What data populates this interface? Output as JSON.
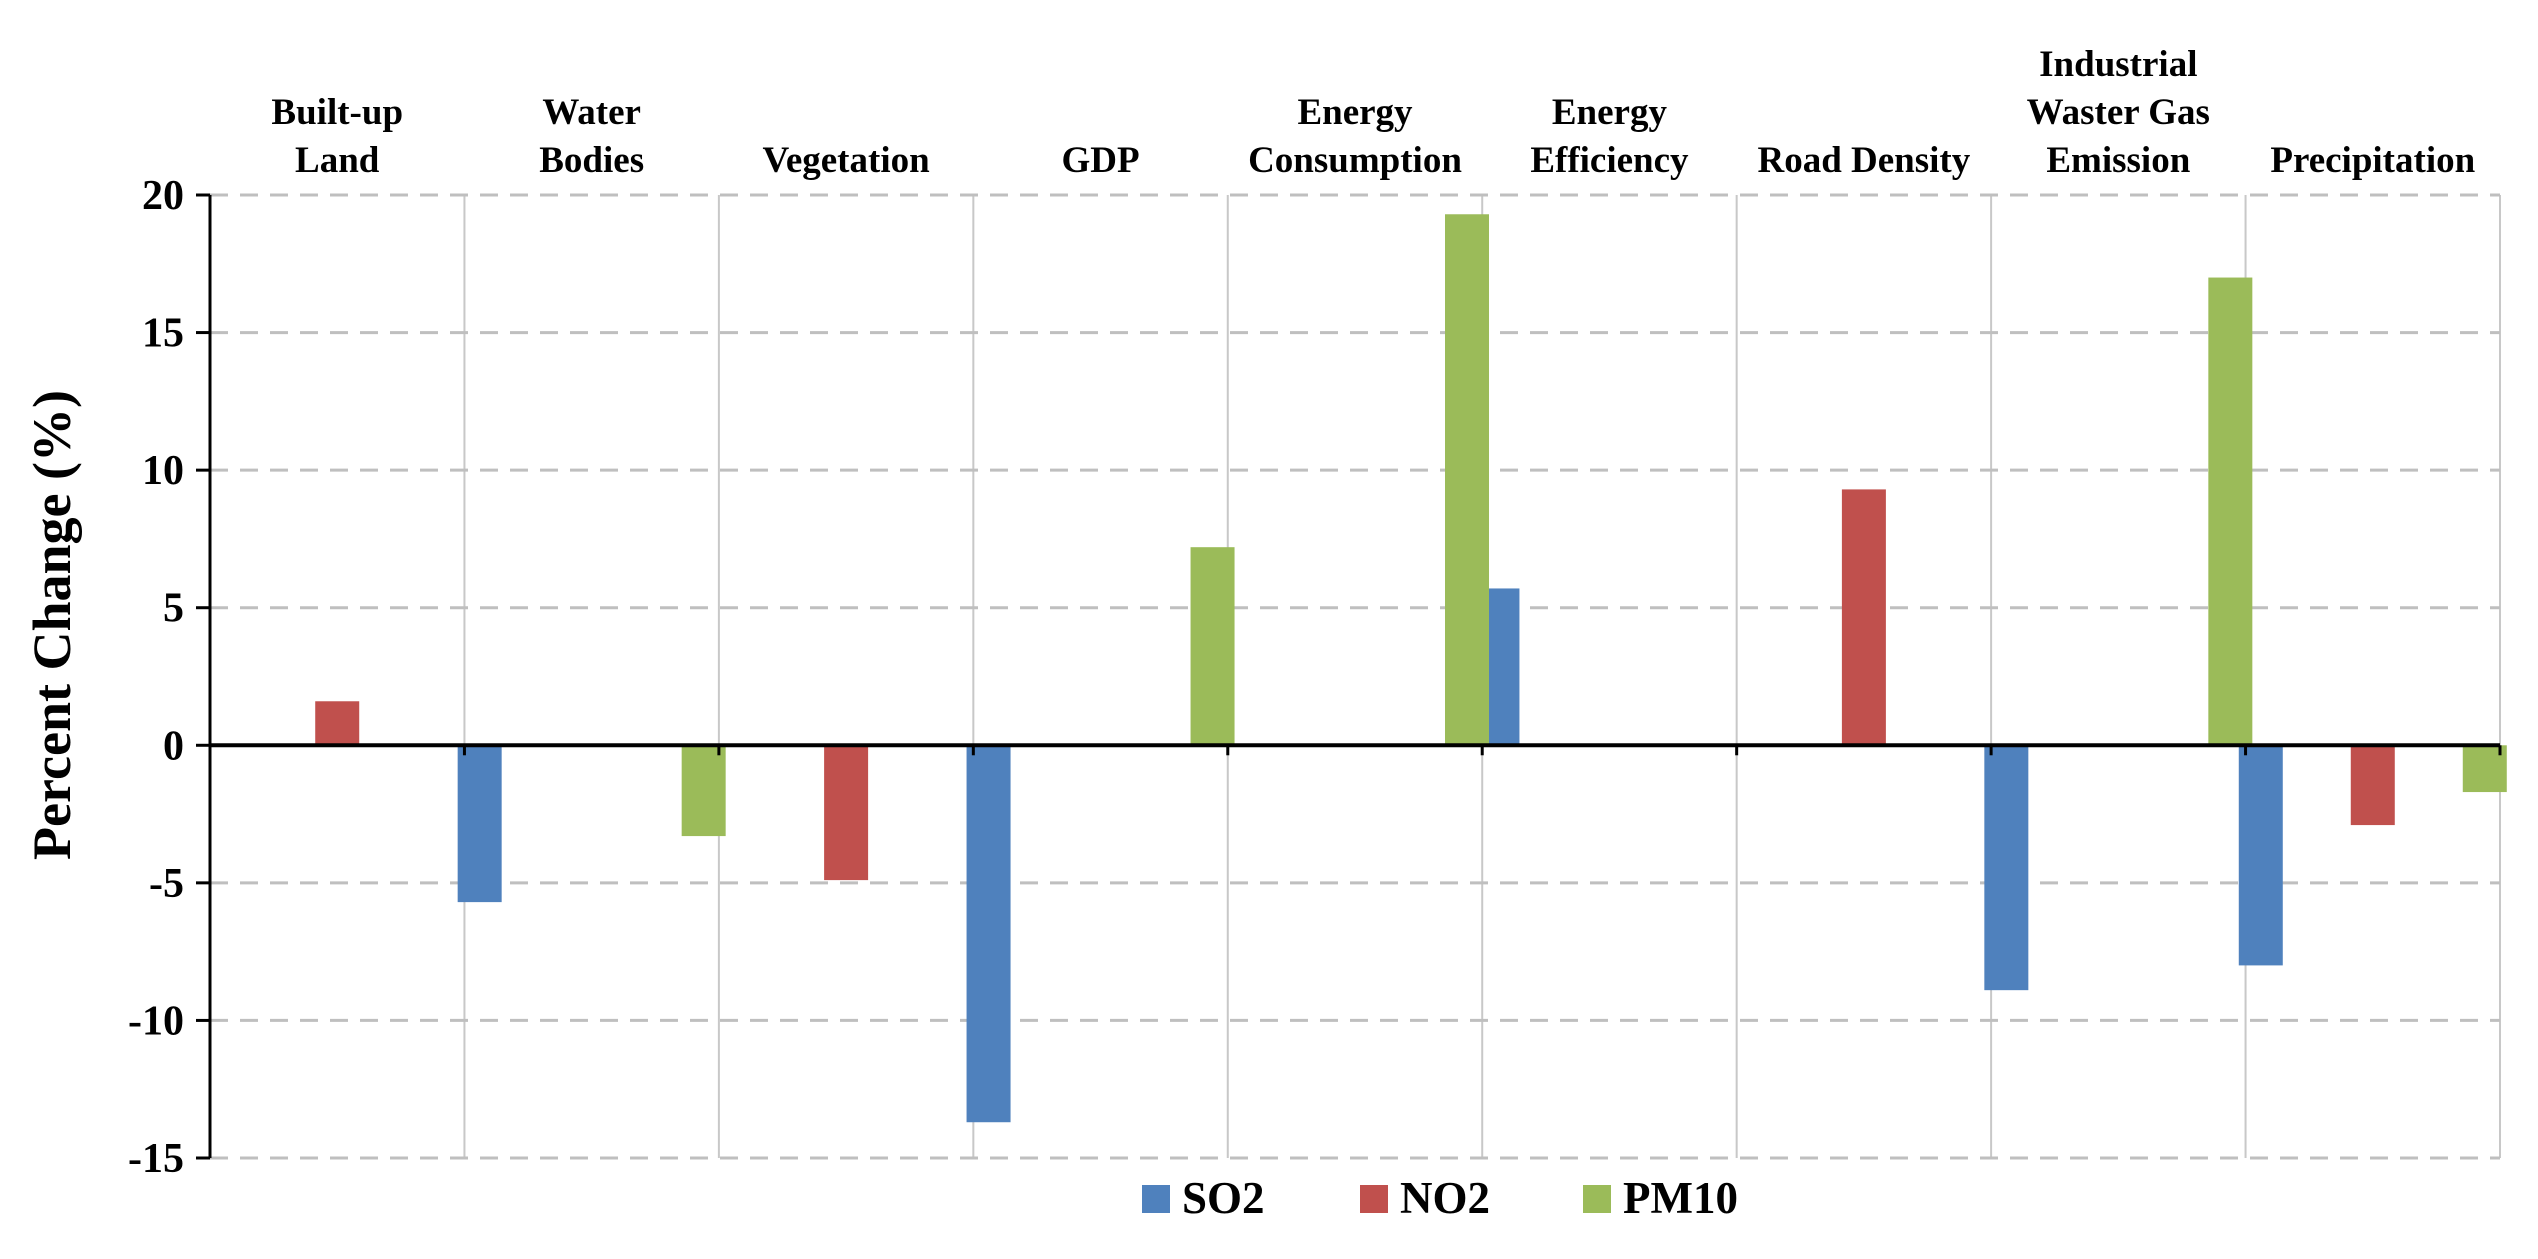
{
  "chart_data": {
    "type": "bar",
    "ylabel": "Percent Change (%)",
    "ylim": [
      -15,
      20
    ],
    "yticks": [
      20,
      15,
      10,
      5,
      0,
      -5,
      -10,
      -15
    ],
    "categories": [
      [
        "Built-up",
        "Land"
      ],
      [
        "Water",
        "Bodies"
      ],
      [
        "Vegetation"
      ],
      [
        "GDP"
      ],
      [
        "Energy",
        "Consumption"
      ],
      [
        "Energy",
        "Efficiency"
      ],
      [
        "Road Density"
      ],
      [
        "Industrial",
        "Waster Gas",
        "Emission"
      ],
      [
        "Precipitation"
      ]
    ],
    "series": [
      {
        "name": "SO2",
        "color": "#4f81bd",
        "values": [
          null,
          -5.7,
          null,
          -13.7,
          null,
          5.7,
          null,
          -8.9,
          -8.0
        ]
      },
      {
        "name": "NO2",
        "color": "#c0504d",
        "values": [
          1.6,
          null,
          -4.9,
          null,
          null,
          null,
          9.3,
          null,
          -2.9
        ]
      },
      {
        "name": "PM10",
        "color": "#9bbb59",
        "values": [
          null,
          -3.3,
          null,
          7.2,
          19.3,
          null,
          null,
          17.0,
          -1.7
        ]
      }
    ],
    "grid": true,
    "legend": "bottom-center"
  }
}
